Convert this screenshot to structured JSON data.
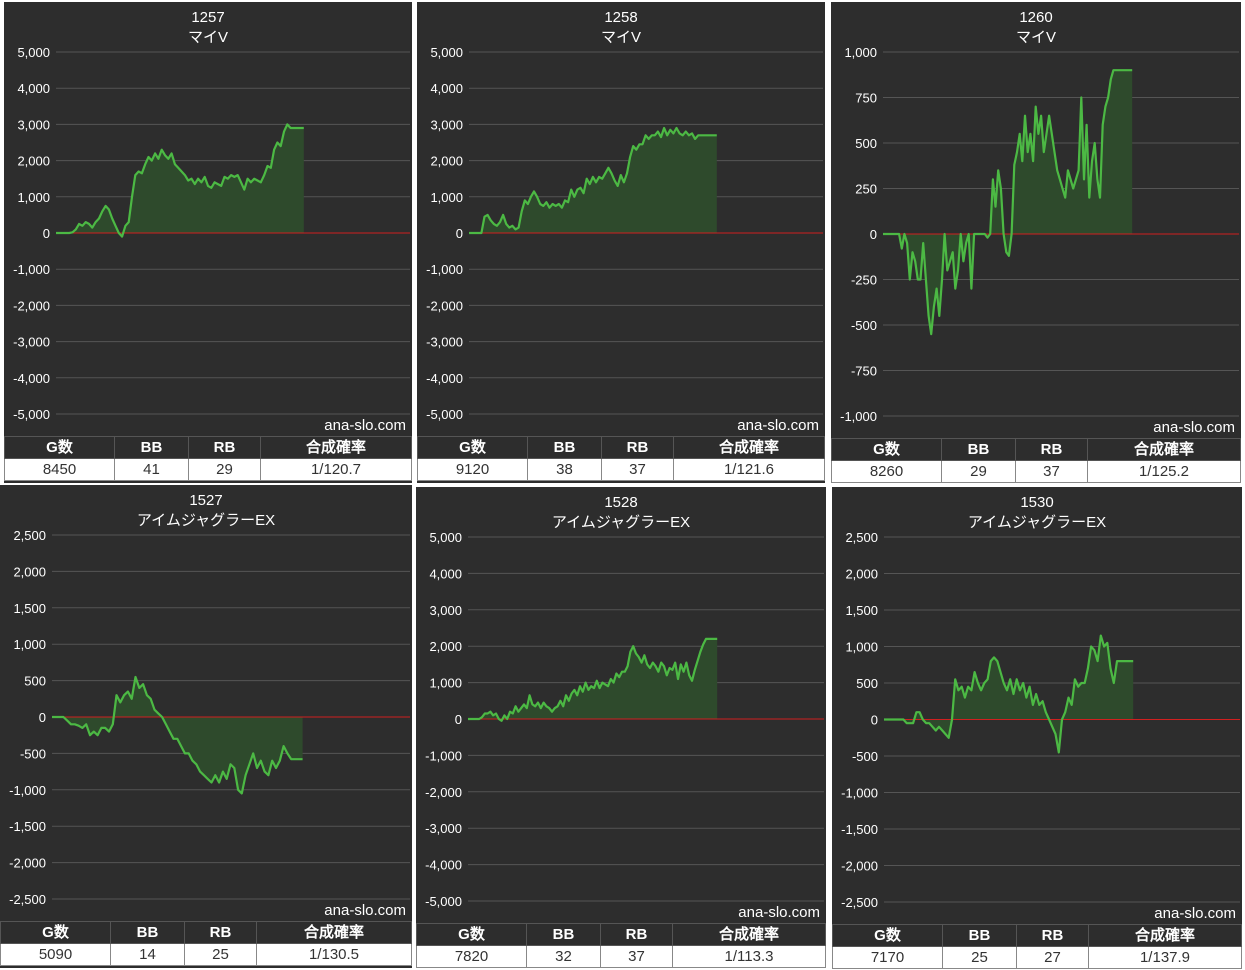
{
  "colors": {
    "background": "#2d2d2d",
    "grid": "#555555",
    "line": "#4cb944",
    "area": "#2e4a2c",
    "zero_line": "#d02020",
    "text": "#ffffff"
  },
  "watermark": "ana-slo.com",
  "table_headers": {
    "games": "G数",
    "bb": "BB",
    "rb": "RB",
    "combined": "合成確率"
  },
  "chart_data": [
    {
      "type": "area",
      "machine_no": "1257",
      "model": "マイV",
      "ylim": [
        -5000,
        5000
      ],
      "yticks": [
        5000,
        4000,
        3000,
        2000,
        1000,
        0,
        -1000,
        -2000,
        -3000,
        -4000,
        -5000
      ],
      "ytick_labels": [
        "5,000",
        "4,000",
        "3,000",
        "2,000",
        "1,000",
        "0",
        "-1,000",
        "-2,000",
        "-3,000",
        "-4,000",
        "-5,000"
      ],
      "grid": true,
      "y": [
        0,
        0,
        0,
        0,
        0,
        20,
        100,
        250,
        200,
        300,
        250,
        150,
        300,
        400,
        600,
        750,
        650,
        400,
        200,
        0,
        -100,
        200,
        300,
        1000,
        1600,
        1700,
        1650,
        1900,
        2100,
        2000,
        2200,
        2050,
        2300,
        2150,
        2050,
        2200,
        1900,
        1800,
        1700,
        1600,
        1450,
        1500,
        1350,
        1500,
        1400,
        1550,
        1300,
        1250,
        1400,
        1350,
        1300,
        1550,
        1500,
        1600,
        1550,
        1600,
        1400,
        1200,
        1500,
        1400,
        1500,
        1450,
        1400,
        1600,
        1850,
        1800,
        2300,
        2500,
        2400,
        2800,
        3000,
        2900,
        2900,
        2900,
        2900,
        2900
      ],
      "stats": {
        "games": "8450",
        "bb": "41",
        "rb": "29",
        "combined": "1/120.7"
      }
    },
    {
      "type": "area",
      "machine_no": "1258",
      "model": "マイV",
      "ylim": [
        -5000,
        5000
      ],
      "yticks": [
        5000,
        4000,
        3000,
        2000,
        1000,
        0,
        -1000,
        -2000,
        -3000,
        -4000,
        -5000
      ],
      "ytick_labels": [
        "5,000",
        "4,000",
        "3,000",
        "2,000",
        "1,000",
        "0",
        "-1,000",
        "-2,000",
        "-3,000",
        "-4,000",
        "-5,000"
      ],
      "grid": true,
      "y": [
        0,
        0,
        0,
        0,
        0,
        450,
        500,
        350,
        250,
        200,
        300,
        500,
        250,
        150,
        200,
        100,
        150,
        600,
        900,
        800,
        1000,
        1150,
        1000,
        800,
        750,
        850,
        700,
        800,
        750,
        800,
        700,
        900,
        850,
        1200,
        1000,
        1200,
        1250,
        1100,
        1500,
        1350,
        1550,
        1400,
        1550,
        1500,
        1650,
        1800,
        1650,
        1450,
        1300,
        1600,
        1400,
        1650,
        2100,
        2400,
        2300,
        2450,
        2450,
        2700,
        2600,
        2700,
        2700,
        2800,
        2650,
        2900,
        2700,
        2850,
        2750,
        2900,
        2750,
        2700,
        2800,
        2700,
        2750,
        2600,
        2700,
        2700,
        2700,
        2700,
        2700,
        2700,
        2700
      ],
      "stats": {
        "games": "9120",
        "bb": "38",
        "rb": "37",
        "combined": "1/121.6"
      }
    },
    {
      "type": "area",
      "machine_no": "1260",
      "model": "マイV",
      "ylim": [
        -1000,
        1000
      ],
      "yticks": [
        1000,
        750,
        500,
        250,
        0,
        -250,
        -500,
        -750,
        -1000
      ],
      "ytick_labels": [
        "1,000",
        "750",
        "500",
        "250",
        "0",
        "-250",
        "-500",
        "-750",
        "-1,000"
      ],
      "grid": true,
      "y": [
        0,
        0,
        0,
        0,
        0,
        0,
        0,
        -80,
        0,
        -50,
        -250,
        -100,
        -150,
        -250,
        -250,
        -50,
        -250,
        -450,
        -550,
        -400,
        -300,
        -450,
        -250,
        0,
        -200,
        -150,
        -100,
        -300,
        -200,
        0,
        -150,
        -50,
        0,
        -300,
        0,
        0,
        0,
        0,
        0,
        -20,
        0,
        300,
        150,
        350,
        250,
        0,
        -100,
        -120,
        0,
        380,
        450,
        550,
        400,
        650,
        450,
        550,
        400,
        700,
        550,
        650,
        450,
        550,
        650,
        550,
        450,
        350,
        300,
        250,
        200,
        350,
        300,
        250,
        300,
        350,
        750,
        300,
        600,
        200,
        400,
        500,
        300,
        200,
        600,
        700,
        750,
        850,
        900,
        900,
        900,
        900,
        900,
        900,
        900,
        900
      ],
      "stats": {
        "games": "8260",
        "bb": "29",
        "rb": "37",
        "combined": "1/125.2"
      }
    },
    {
      "type": "area",
      "machine_no": "1527",
      "model": "アイムジャグラーEX",
      "ylim": [
        -2500,
        2500
      ],
      "yticks": [
        2500,
        2000,
        1500,
        1000,
        500,
        0,
        -500,
        -1000,
        -1500,
        -2000,
        -2500
      ],
      "ytick_labels": [
        "2,500",
        "2,000",
        "1,500",
        "1,000",
        "500",
        "0",
        "-500",
        "-1,000",
        "-1,500",
        "-2,000",
        "-2,500"
      ],
      "grid": true,
      "y": [
        0,
        0,
        0,
        0,
        -50,
        -100,
        -100,
        -120,
        -150,
        -100,
        -250,
        -200,
        -250,
        -150,
        -150,
        -200,
        -100,
        300,
        200,
        300,
        350,
        250,
        550,
        400,
        450,
        300,
        250,
        100,
        50,
        0,
        -100,
        -200,
        -300,
        -300,
        -400,
        -500,
        -500,
        -600,
        -650,
        -750,
        -800,
        -850,
        -900,
        -800,
        -900,
        -750,
        -850,
        -650,
        -700,
        -1000,
        -1050,
        -800,
        -650,
        -500,
        -700,
        -600,
        -750,
        -800,
        -600,
        -700,
        -600,
        -400,
        -500,
        -580,
        -580,
        -580,
        -580
      ],
      "stats": {
        "games": "5090",
        "bb": "14",
        "rb": "25",
        "combined": "1/130.5"
      }
    },
    {
      "type": "area",
      "machine_no": "1528",
      "model": "アイムジャグラーEX",
      "ylim": [
        -5000,
        5000
      ],
      "yticks": [
        5000,
        4000,
        3000,
        2000,
        1000,
        0,
        -1000,
        -2000,
        -3000,
        -4000,
        -5000
      ],
      "ytick_labels": [
        "5,000",
        "4,000",
        "3,000",
        "2,000",
        "1,000",
        "0",
        "-1,000",
        "-2,000",
        "-3,000",
        "-4,000",
        "-5,000"
      ],
      "grid": true,
      "y": [
        0,
        0,
        0,
        0,
        0,
        50,
        150,
        150,
        200,
        100,
        150,
        0,
        -50,
        100,
        0,
        200,
        150,
        350,
        200,
        300,
        400,
        300,
        650,
        400,
        350,
        450,
        300,
        450,
        350,
        300,
        200,
        300,
        350,
        500,
        350,
        650,
        500,
        700,
        800,
        650,
        900,
        750,
        1000,
        800,
        900,
        850,
        1050,
        850,
        1000,
        950,
        900,
        1100,
        1000,
        1250,
        1150,
        1300,
        1300,
        1450,
        1850,
        2000,
        1800,
        1700,
        1550,
        1750,
        1500,
        1400,
        1550,
        1450,
        1300,
        1550,
        1450,
        1200,
        1400,
        1350,
        1550,
        1100,
        1500,
        1300,
        1550,
        1200,
        1050,
        1350,
        1600,
        1850,
        2050,
        2200,
        2200,
        2200,
        2200,
        2200
      ],
      "stats": {
        "games": "7820",
        "bb": "32",
        "rb": "37",
        "combined": "1/113.3"
      }
    },
    {
      "type": "area",
      "machine_no": "1530",
      "model": "アイムジャグラーEX",
      "ylim": [
        -2500,
        2500
      ],
      "yticks": [
        2500,
        2000,
        1500,
        1000,
        500,
        0,
        -500,
        -1000,
        -1500,
        -2000,
        -2500
      ],
      "ytick_labels": [
        "2,500",
        "2,000",
        "1,500",
        "1,000",
        "500",
        "0",
        "-500",
        "-1,000",
        "-1,500",
        "-2,000",
        "-2,500"
      ],
      "grid": true,
      "y": [
        0,
        0,
        0,
        0,
        0,
        0,
        0,
        -50,
        -50,
        -50,
        100,
        100,
        0,
        -50,
        -50,
        -100,
        -150,
        -100,
        -150,
        -200,
        -250,
        0,
        550,
        400,
        450,
        300,
        450,
        400,
        650,
        500,
        400,
        500,
        550,
        800,
        850,
        800,
        650,
        500,
        400,
        550,
        350,
        550,
        400,
        500,
        300,
        450,
        200,
        350,
        200,
        250,
        100,
        0,
        -100,
        -200,
        -450,
        0,
        100,
        300,
        200,
        550,
        450,
        500,
        500,
        700,
        1000,
        950,
        800,
        1150,
        1000,
        1050,
        700,
        500,
        800,
        800,
        800,
        800,
        800,
        800
      ],
      "stats": {
        "games": "7170",
        "bb": "25",
        "rb": "27",
        "combined": "1/137.9"
      }
    }
  ]
}
